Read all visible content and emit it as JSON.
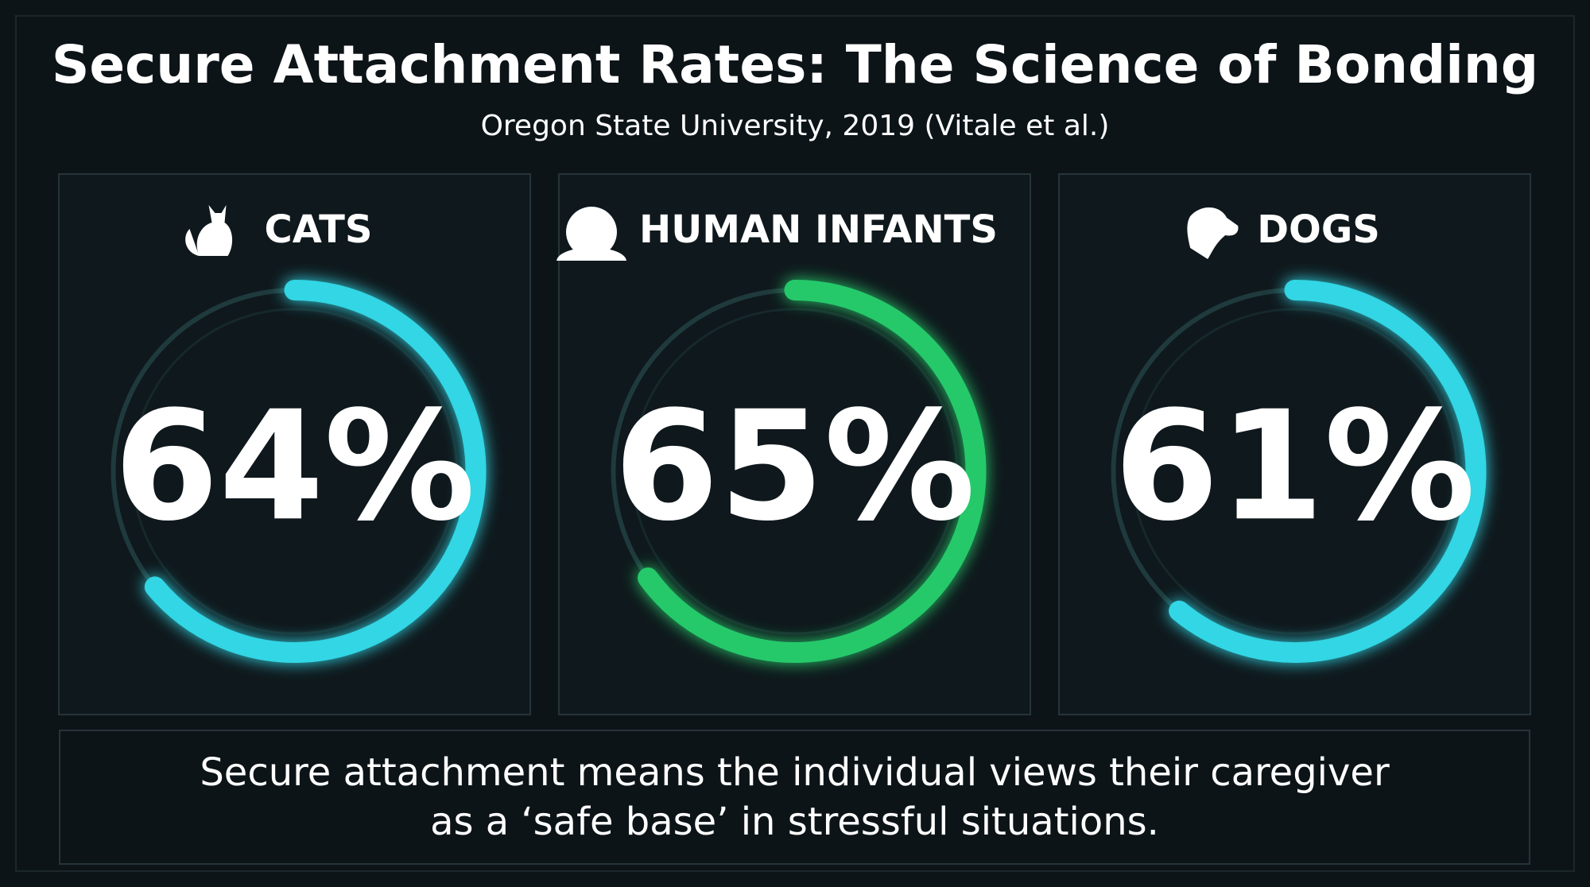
{
  "chart_data": {
    "type": "gauge",
    "title": "Secure Attachment Rates: The Science of Bonding",
    "subtitle": "Oregon State University, 2019 (Vitale et al.)",
    "categories": [
      "CATS",
      "HUMAN INFANTS",
      "DOGS"
    ],
    "values": [
      64,
      65,
      61
    ],
    "value_labels": [
      "64%",
      "65%",
      "61%"
    ],
    "colors": [
      "#33d6e4",
      "#27c96a",
      "#33d6e4"
    ],
    "note": "Secure attachment means the individual views their caregiver as a ‘safe base’ in stressful situations."
  }
}
